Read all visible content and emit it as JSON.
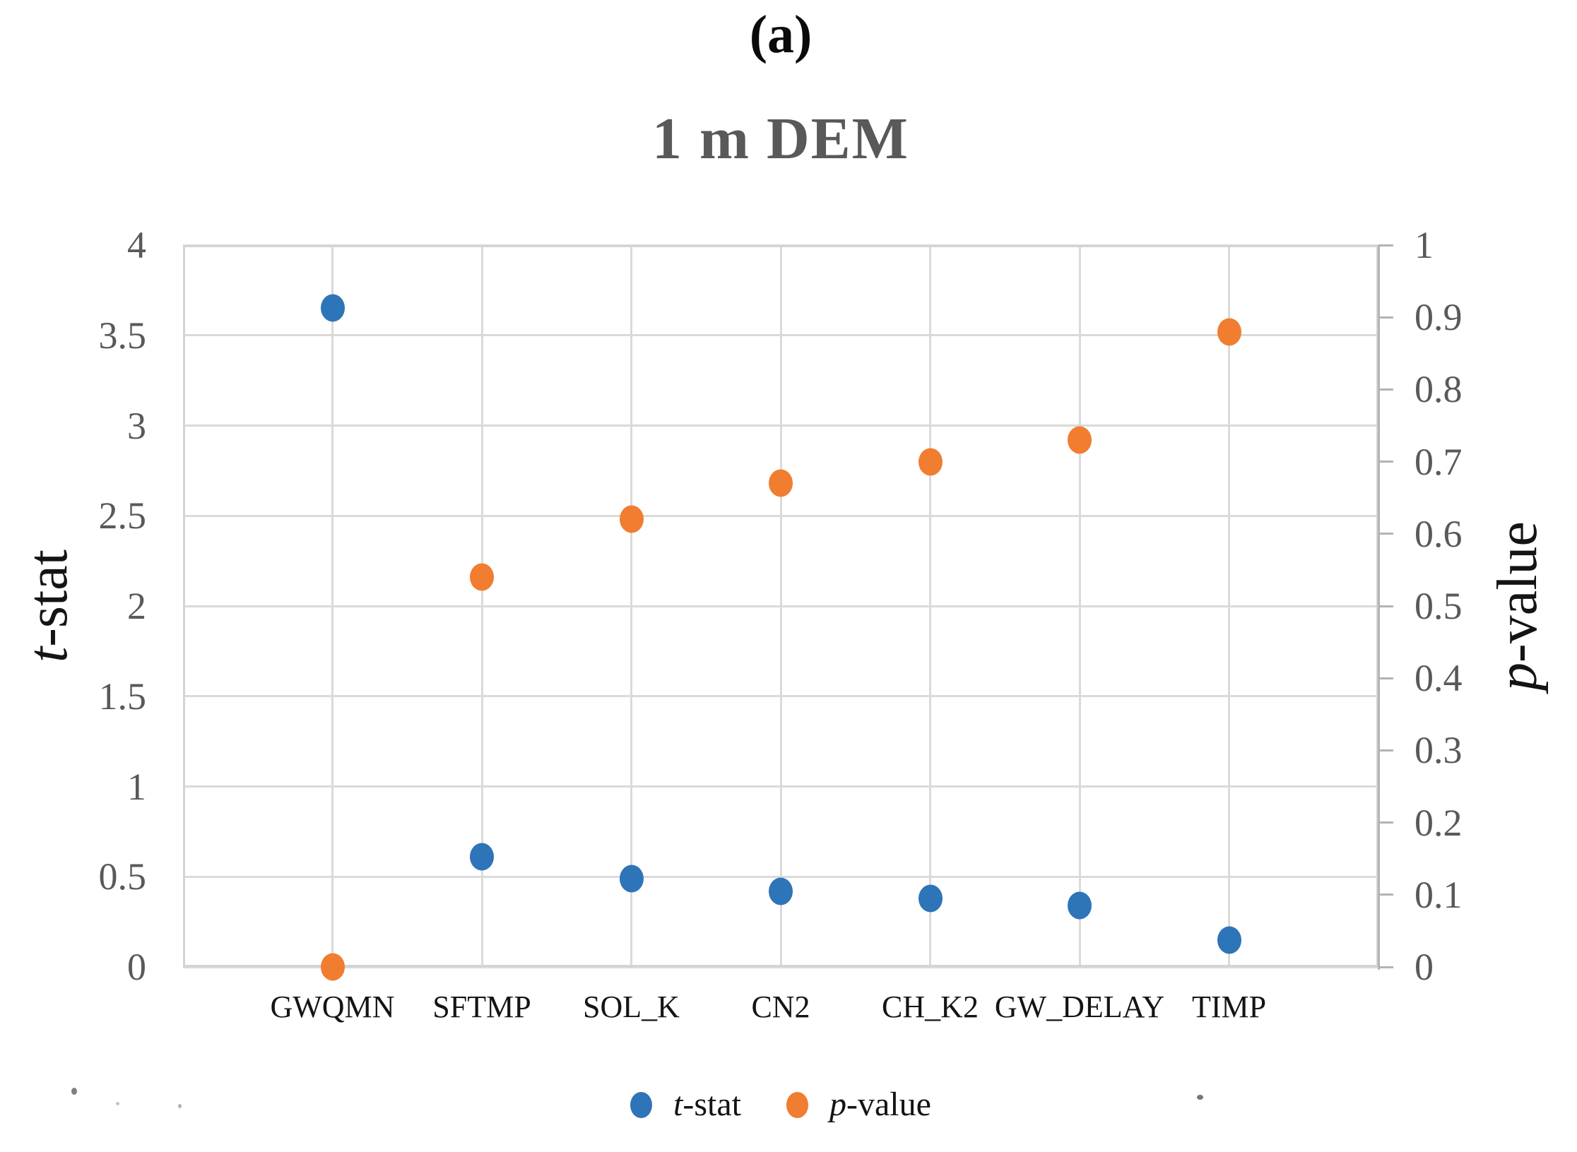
{
  "panel_label": "(a)",
  "title": "1 m DEM",
  "axes": {
    "left": {
      "title_em": "t",
      "title_rest": "-stat"
    },
    "right": {
      "title_em": "p",
      "title_rest": "-value"
    }
  },
  "legend": {
    "items": [
      {
        "em": "t",
        "rest": "-stat",
        "color": "#2e74b8"
      },
      {
        "em": "p",
        "rest": "-value",
        "color": "#f07d30"
      }
    ]
  },
  "chart_data": {
    "type": "scatter",
    "title": "1 m DEM",
    "categories": [
      "GWQMN",
      "SFTMP",
      "SOL_K",
      "CN2",
      "CH_K2",
      "GW_DELAY",
      "TIMP"
    ],
    "series": [
      {
        "name": "t-stat",
        "axis": "left",
        "color": "#2e74b8",
        "values": [
          3.65,
          0.61,
          0.49,
          0.42,
          0.38,
          0.34,
          0.15
        ]
      },
      {
        "name": "p-value",
        "axis": "right",
        "color": "#f07d30",
        "values": [
          0.0,
          0.54,
          0.62,
          0.67,
          0.7,
          0.73,
          0.88
        ]
      }
    ],
    "left_axis": {
      "label": "t-stat",
      "range": [
        0,
        4
      ],
      "ticks": [
        4,
        3.5,
        3,
        2.5,
        2,
        1.5,
        1,
        0.5,
        0
      ]
    },
    "right_axis": {
      "label": "p-value",
      "range": [
        0,
        1
      ],
      "ticks": [
        1,
        0.9,
        0.8,
        0.7,
        0.6,
        0.5,
        0.4,
        0.3,
        0.2,
        0.1,
        0
      ]
    },
    "grid": true,
    "legend_position": "bottom"
  },
  "colors": {
    "blue": "#2e74b8",
    "orange": "#f07d30",
    "grid": "#dadada",
    "axis_line": "#b3b3b3",
    "tick_text": "#595959",
    "title_text": "#595959"
  }
}
